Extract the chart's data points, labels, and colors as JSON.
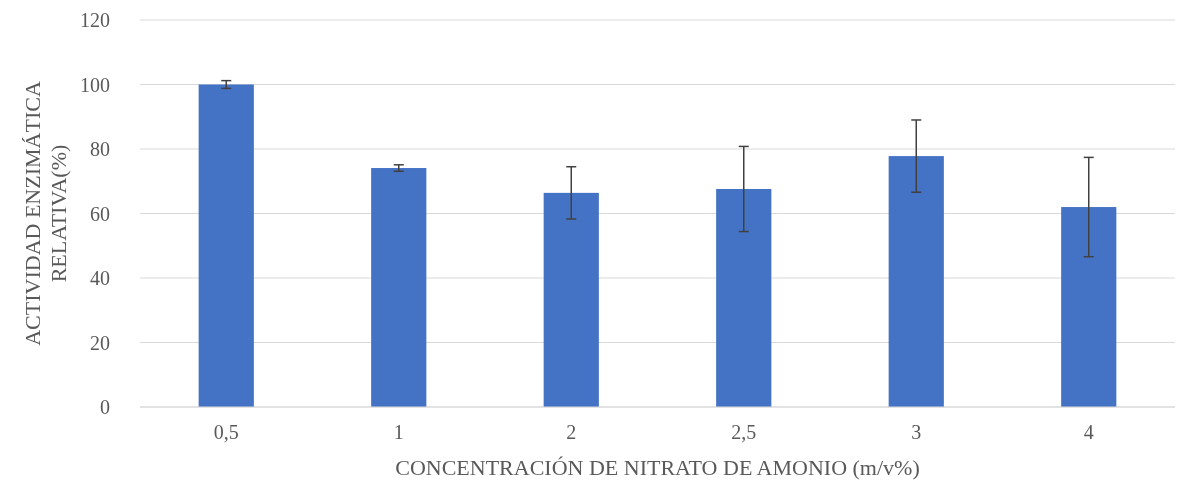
{
  "chart_data": {
    "type": "bar",
    "xlabel": "CONCENTRACIÓN DE NITRATO DE AMONIO (m/v%)",
    "ylabel": "ACTIVIDAD ENZIMÁTICA RELATIVA(%)",
    "categories": [
      "0,5",
      "1",
      "2",
      "2,5",
      "3",
      "4"
    ],
    "values": [
      100,
      74.1,
      66.4,
      67.6,
      77.8,
      62
    ],
    "errors": [
      1.2,
      1,
      8.1,
      13.2,
      11.2,
      15.4
    ],
    "color": "#4472c4",
    "ylim": [
      0,
      120
    ],
    "yticks": [
      0,
      20,
      40,
      60,
      80,
      100,
      120
    ],
    "grid": "y"
  }
}
